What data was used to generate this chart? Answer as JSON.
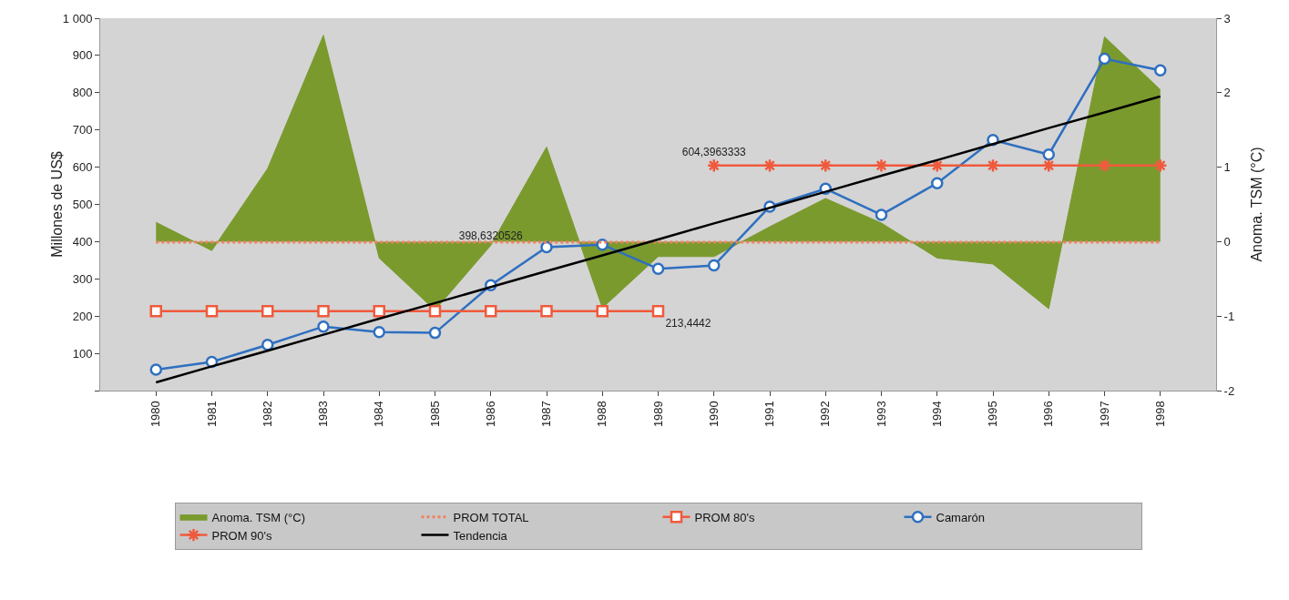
{
  "chart_data": {
    "type": "line",
    "ylabel": "Millones de US$",
    "y2label": "Anoma. TSM (°C)",
    "categories": [
      "1980",
      "1981",
      "1982",
      "1983",
      "1984",
      "1985",
      "1986",
      "1987",
      "1988",
      "1989",
      "1990",
      "1991",
      "1992",
      "1993",
      "1994",
      "1995",
      "1996",
      "1997",
      "1998"
    ],
    "series": [
      {
        "name": "Anoma. TSM (°C)",
        "type": "area",
        "axis": "y2",
        "color": "#7a9a2e",
        "marker": "none",
        "values": [
          0.26,
          -0.12,
          0.98,
          2.77,
          -0.22,
          -0.92,
          -0.05,
          1.27,
          -0.89,
          -0.2,
          -0.2,
          0.2,
          0.58,
          0.25,
          -0.22,
          -0.3,
          -0.9,
          2.75,
          2.04
        ]
      },
      {
        "name": "PROM TOTAL",
        "color": "#f08060",
        "marker": "none",
        "line_style": "dotted",
        "values": [
          398.6320526,
          398.6320526,
          398.6320526,
          398.6320526,
          398.6320526,
          398.6320526,
          398.6320526,
          398.6320526,
          398.6320526,
          398.6320526,
          398.6320526,
          398.6320526,
          398.6320526,
          398.6320526,
          398.6320526,
          398.6320526,
          398.6320526,
          398.6320526,
          398.6320526
        ],
        "value_labels": [
          null,
          null,
          null,
          null,
          null,
          null,
          "398,6320526",
          null,
          null,
          null,
          null,
          null,
          null,
          null,
          null,
          null,
          null,
          null,
          null
        ]
      },
      {
        "name": "PROM 80's",
        "color": "#f05a3c",
        "marker": "square",
        "line_style": "solid",
        "values": [
          213.4442,
          213.4442,
          213.4442,
          213.4442,
          213.4442,
          213.4442,
          213.4442,
          213.4442,
          213.4442,
          213.4442,
          null,
          null,
          null,
          null,
          null,
          null,
          null,
          null,
          null
        ],
        "value_labels": [
          null,
          null,
          null,
          null,
          null,
          null,
          null,
          null,
          null,
          "213,4442",
          null,
          null,
          null,
          null,
          null,
          null,
          null,
          null,
          null
        ]
      },
      {
        "name": "Camarón",
        "color": "#2e6fc0",
        "marker": "circle",
        "line_style": "solid",
        "values": [
          56,
          77,
          123,
          172,
          157,
          155,
          283,
          385,
          392,
          327,
          336,
          494,
          542,
          472,
          557,
          673,
          634,
          891,
          860
        ]
      },
      {
        "name": "PROM 90's",
        "color": "#f05a3c",
        "marker": "cross",
        "line_style": "solid",
        "values": [
          null,
          null,
          null,
          null,
          null,
          null,
          null,
          null,
          null,
          null,
          604.3963333,
          604.3963333,
          604.3963333,
          604.3963333,
          604.3963333,
          604.3963333,
          604.3963333,
          604.3963333,
          604.3963333
        ],
        "value_labels": [
          null,
          null,
          null,
          null,
          null,
          null,
          null,
          null,
          null,
          null,
          "604,3963333",
          null,
          null,
          null,
          null,
          null,
          null,
          null,
          null
        ]
      },
      {
        "name": "Tendencia",
        "color": "#000000",
        "marker": "none",
        "line_style": "solid",
        "values": [
          22,
          65,
          107,
          150,
          193,
          235,
          278,
          321,
          363,
          406,
          449,
          491,
          534,
          577,
          619,
          662,
          705,
          747,
          790
        ]
      }
    ],
    "ylim": [
      0,
      1000
    ],
    "yticks": [
      {
        "value": 0,
        "label": null
      },
      100,
      200,
      300,
      400,
      500,
      600,
      700,
      800,
      900,
      {
        "value": 1000,
        "label": "1 000"
      }
    ],
    "y2lim": [
      -2,
      3
    ],
    "y2ticks": [
      -2,
      -1,
      0,
      1,
      2,
      3
    ],
    "grid": false,
    "legend": "bottom"
  }
}
